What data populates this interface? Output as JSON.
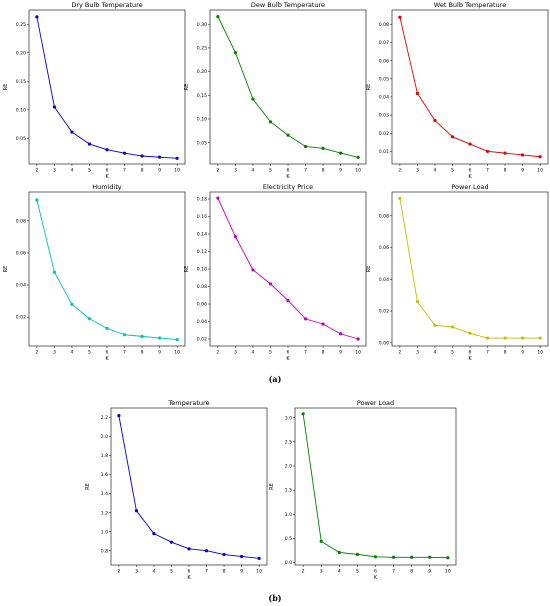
{
  "panel_labels": {
    "a": "(a)",
    "b": "(b)"
  },
  "chart_data": [
    {
      "type": "line",
      "title": "Dry Bulb Temperature",
      "xlabel": "K",
      "ylabel": "RE",
      "color": "#0000cc",
      "x": [
        2,
        3,
        4,
        5,
        6,
        7,
        8,
        9,
        10
      ],
      "values": [
        0.263,
        0.105,
        0.061,
        0.04,
        0.03,
        0.024,
        0.019,
        0.017,
        0.015
      ],
      "ylim": [
        0.005,
        0.275
      ],
      "yticks": [
        0.05,
        0.1,
        0.15,
        0.2,
        0.25
      ],
      "ytick_labels": [
        "0.05",
        "0.10",
        "0.15",
        "0.20",
        "0.25"
      ],
      "xticks": [
        2,
        3,
        4,
        5,
        6,
        7,
        8,
        9,
        10
      ],
      "grid": false
    },
    {
      "type": "line",
      "title": "Dew Bulb Temperature",
      "xlabel": "K",
      "ylabel": "RE",
      "color": "#008000",
      "x": [
        2,
        3,
        4,
        5,
        6,
        7,
        8,
        9,
        10
      ],
      "values": [
        0.316,
        0.24,
        0.142,
        0.094,
        0.066,
        0.042,
        0.038,
        0.028,
        0.019
      ],
      "ylim": [
        0.005,
        0.33
      ],
      "yticks": [
        0.05,
        0.1,
        0.15,
        0.2,
        0.25,
        0.3
      ],
      "ytick_labels": [
        "0.05",
        "0.10",
        "0.15",
        "0.20",
        "0.25",
        "0.30"
      ],
      "xticks": [
        2,
        3,
        4,
        5,
        6,
        7,
        8,
        9,
        10
      ],
      "grid": false
    },
    {
      "type": "line",
      "title": "Wet Bulb Temperature",
      "xlabel": "K",
      "ylabel": "RE",
      "color": "#e00000",
      "x": [
        2,
        3,
        4,
        5,
        6,
        7,
        8,
        9,
        10
      ],
      "values": [
        0.084,
        0.042,
        0.027,
        0.018,
        0.014,
        0.01,
        0.009,
        0.008,
        0.007
      ],
      "ylim": [
        0.003,
        0.088
      ],
      "yticks": [
        0.01,
        0.02,
        0.03,
        0.04,
        0.05,
        0.06,
        0.07,
        0.08
      ],
      "ytick_labels": [
        "0.01",
        "0.02",
        "0.03",
        "0.04",
        "0.05",
        "0.06",
        "0.07",
        "0.08"
      ],
      "xticks": [
        2,
        3,
        4,
        5,
        6,
        7,
        8,
        9,
        10
      ],
      "grid": false
    },
    {
      "type": "line",
      "title": "Humidity",
      "xlabel": "K",
      "ylabel": "RE",
      "color": "#00bfbf",
      "x": [
        2,
        3,
        4,
        5,
        6,
        7,
        8,
        9,
        10
      ],
      "values": [
        0.093,
        0.048,
        0.028,
        0.019,
        0.013,
        0.009,
        0.008,
        0.007,
        0.006
      ],
      "ylim": [
        0.002,
        0.098
      ],
      "yticks": [
        0.02,
        0.04,
        0.06,
        0.08
      ],
      "ytick_labels": [
        "0.02",
        "0.04",
        "0.06",
        "0.08"
      ],
      "xticks": [
        2,
        3,
        4,
        5,
        6,
        7,
        8,
        9,
        10
      ],
      "grid": false
    },
    {
      "type": "line",
      "title": "Electricity Price",
      "xlabel": "K",
      "ylabel": "RE",
      "color": "#bf00bf",
      "x": [
        2,
        3,
        4,
        5,
        6,
        7,
        8,
        9,
        10
      ],
      "values": [
        0.181,
        0.137,
        0.099,
        0.083,
        0.064,
        0.043,
        0.037,
        0.026,
        0.02
      ],
      "ylim": [
        0.012,
        0.188
      ],
      "yticks": [
        0.02,
        0.04,
        0.06,
        0.08,
        0.1,
        0.12,
        0.14,
        0.16,
        0.18
      ],
      "ytick_labels": [
        "0.02",
        "0.04",
        "0.06",
        "0.08",
        "0.10",
        "0.12",
        "0.14",
        "0.16",
        "0.18"
      ],
      "xticks": [
        2,
        3,
        4,
        5,
        6,
        7,
        8,
        9,
        10
      ],
      "grid": false
    },
    {
      "type": "line",
      "title": "Power Load",
      "xlabel": "K",
      "ylabel": "RE",
      "color": "#bfbf00",
      "x": [
        2,
        3,
        4,
        5,
        6,
        7,
        8,
        9,
        10
      ],
      "values": [
        0.091,
        0.026,
        0.011,
        0.01,
        0.006,
        0.003,
        0.003,
        0.003,
        0.003
      ],
      "ylim": [
        -0.002,
        0.095
      ],
      "yticks": [
        0.0,
        0.02,
        0.04,
        0.06,
        0.08
      ],
      "ytick_labels": [
        "0.00",
        "0.02",
        "0.04",
        "0.06",
        "0.08"
      ],
      "xticks": [
        2,
        3,
        4,
        5,
        6,
        7,
        8,
        9,
        10
      ],
      "grid": false
    },
    {
      "type": "line",
      "title": "Temperature",
      "xlabel": "K",
      "ylabel": "RE",
      "color": "#0000cc",
      "x": [
        2,
        3,
        4,
        5,
        6,
        7,
        8,
        9,
        10
      ],
      "values": [
        2.22,
        1.22,
        0.98,
        0.89,
        0.82,
        0.8,
        0.76,
        0.74,
        0.72
      ],
      "ylim": [
        0.65,
        2.3
      ],
      "yticks": [
        0.8,
        1.0,
        1.2,
        1.4,
        1.6,
        1.8,
        2.0,
        2.2
      ],
      "ytick_labels": [
        "0.8",
        "1.0",
        "1.2",
        "1.4",
        "1.6",
        "1.8",
        "2.0",
        "2.2"
      ],
      "xticks": [
        2,
        3,
        4,
        5,
        6,
        7,
        8,
        9,
        10
      ],
      "grid": false
    },
    {
      "type": "line",
      "title": "Power Load",
      "xlabel": "K",
      "ylabel": "RE",
      "color": "#008000",
      "x": [
        2,
        3,
        4,
        5,
        6,
        7,
        8,
        9,
        10
      ],
      "values": [
        3.08,
        0.44,
        0.21,
        0.17,
        0.12,
        0.11,
        0.11,
        0.11,
        0.1
      ],
      "ylim": [
        -0.05,
        3.2
      ],
      "yticks": [
        0.0,
        0.5,
        1.0,
        1.5,
        2.0,
        2.5,
        3.0
      ],
      "ytick_labels": [
        "0.0",
        "0.5",
        "1.0",
        "1.5",
        "2.0",
        "2.5",
        "3.0"
      ],
      "xticks": [
        2,
        3,
        4,
        5,
        6,
        7,
        8,
        9,
        10
      ],
      "grid": false
    }
  ]
}
